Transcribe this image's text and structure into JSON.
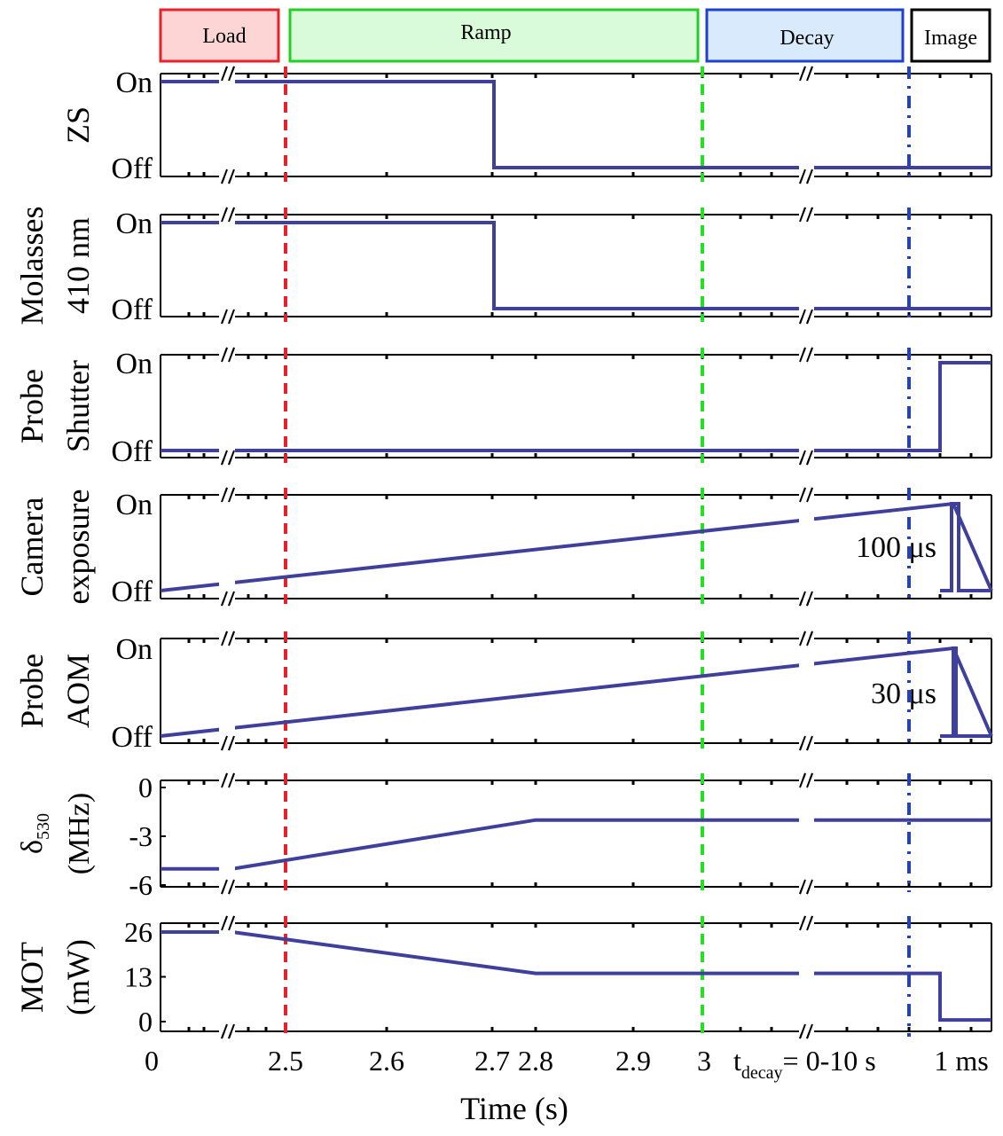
{
  "phases": [
    {
      "label": "Load",
      "fill": "#fdd5d5",
      "stroke": "#e8202a"
    },
    {
      "label": "Ramp",
      "fill": "#d9fbd9",
      "stroke": "#22d022"
    },
    {
      "label": "Decay",
      "fill": "#d8eafc",
      "stroke": "#1e3fd0"
    },
    {
      "label": "Image",
      "fill": "#ffffff",
      "stroke": "#000000"
    }
  ],
  "chart_data": {
    "type": "line",
    "xlabel": "Time (s)",
    "x_ticks": [
      "0",
      "2.5",
      "2.6",
      "2.7",
      "2.8",
      "2.9",
      "3",
      "1 ms"
    ],
    "decay_label_prefix": "t",
    "decay_label_sub": "decay",
    "decay_label_suffix": "= 0-10 s",
    "x_segments": [
      {
        "name": "load",
        "range": [
          0,
          2.5
        ]
      },
      {
        "name": "ramp",
        "range": [
          2.5,
          3.0
        ]
      },
      {
        "name": "decay",
        "range": "0-10 s"
      },
      {
        "name": "image",
        "range": "1 ms"
      }
    ],
    "markers": [
      {
        "x": 2.5,
        "color": "#e8202a",
        "style": "dashed"
      },
      {
        "x": 3.0,
        "color": "#22e022",
        "style": "dashed"
      },
      {
        "x": "end of decay",
        "color": "#1e3fd0",
        "style": "dashed"
      }
    ],
    "line_color": "#3f3f9c",
    "panels": [
      {
        "name": "zs",
        "ylabel": [
          "ZS"
        ],
        "yticks": [
          "On",
          "Off"
        ],
        "points": [
          [
            "load-start",
            "On"
          ],
          [
            2.5,
            "On"
          ],
          [
            2.75,
            "On"
          ],
          [
            2.75,
            "Off"
          ],
          [
            3.0,
            "Off"
          ],
          [
            "image-end",
            "Off"
          ]
        ]
      },
      {
        "name": "molasses",
        "ylabel": [
          "Molasses",
          "410 nm"
        ],
        "yticks": [
          "On",
          "Off"
        ],
        "points": [
          [
            "load-start",
            "On"
          ],
          [
            2.5,
            "On"
          ],
          [
            2.75,
            "On"
          ],
          [
            2.75,
            "Off"
          ],
          [
            3.0,
            "Off"
          ],
          [
            "image-end",
            "Off"
          ]
        ]
      },
      {
        "name": "probe-shutter",
        "ylabel": [
          "Probe",
          "Shutter"
        ],
        "yticks": [
          "On",
          "Off"
        ],
        "points": [
          [
            "load-start",
            "Off"
          ],
          [
            3.0,
            "Off"
          ],
          [
            "image-start",
            "Off"
          ],
          [
            "image-start",
            "On"
          ],
          [
            "image-end",
            "On"
          ]
        ]
      },
      {
        "name": "camera",
        "ylabel": [
          "Camera",
          "exposure"
        ],
        "yticks": [
          "On",
          "Off"
        ],
        "annotation": "100 μs",
        "pulse_width": "100 μs",
        "points": [
          [
            "load-start",
            "Off"
          ],
          [
            "image-pulse",
            "On"
          ],
          [
            "image-end",
            "Off"
          ]
        ]
      },
      {
        "name": "probe-aom",
        "ylabel": [
          "Probe",
          "AOM"
        ],
        "yticks": [
          "On",
          "Off"
        ],
        "annotation": "30 μs",
        "pulse_width": "30 μs",
        "points": [
          [
            "load-start",
            "Off"
          ],
          [
            "image-pulse",
            "On"
          ],
          [
            "image-end",
            "Off"
          ]
        ]
      },
      {
        "name": "detuning",
        "ylabel_delta": "δ",
        "ylabel_sub": "530",
        "ylabel_unit": "(MHz)",
        "yticks": [
          "0",
          "-3",
          "-6"
        ],
        "ylim": [
          -6,
          0
        ],
        "points": [
          [
            0,
            -5
          ],
          [
            2.5,
            -5
          ],
          [
            2.8,
            -2
          ],
          [
            3.0,
            -2
          ],
          [
            "image-end",
            -2
          ]
        ]
      },
      {
        "name": "mot",
        "ylabel": [
          "MOT",
          "(mW)"
        ],
        "yticks": [
          "26",
          "13",
          "0"
        ],
        "ylim": [
          0,
          26
        ],
        "points": [
          [
            0,
            26
          ],
          [
            2.5,
            26
          ],
          [
            2.8,
            14
          ],
          [
            3.0,
            14
          ],
          [
            "image-start",
            14
          ],
          [
            "image-start",
            0.5
          ],
          [
            "image-end",
            0.5
          ]
        ]
      }
    ]
  }
}
